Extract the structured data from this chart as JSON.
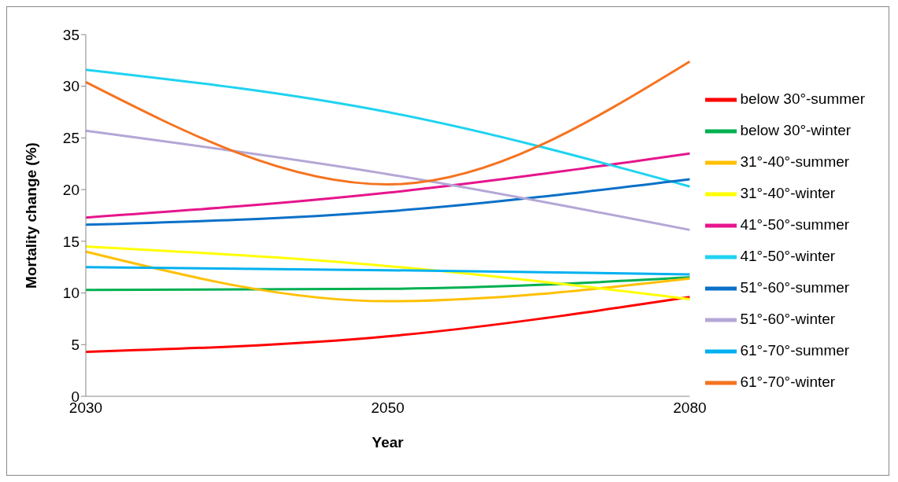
{
  "chart_data": {
    "type": "line",
    "xlabel": "Year",
    "ylabel": "Mortality change (%)",
    "categories": [
      "2030",
      "2050",
      "2080"
    ],
    "ylim": [
      0,
      35
    ],
    "yticks": [
      0,
      5,
      10,
      15,
      20,
      25,
      30,
      35
    ],
    "grid": false,
    "legend": "right",
    "marker": "none",
    "line_style": "solid",
    "series": [
      {
        "name": "below 30°-summer",
        "color": "#ff0000",
        "values": [
          4.3,
          5.8,
          9.6
        ]
      },
      {
        "name": "below 30°-winter",
        "color": "#00b050",
        "values": [
          10.3,
          10.4,
          11.5
        ]
      },
      {
        "name": "31°-40°-summer",
        "color": "#ffc000",
        "values": [
          14.0,
          9.2,
          11.4
        ]
      },
      {
        "name": "31°-40°-winter",
        "color": "#ffff00",
        "values": [
          14.5,
          12.6,
          9.4
        ]
      },
      {
        "name": "41°-50°-summer",
        "color": "#e6158c",
        "values": [
          17.3,
          19.7,
          23.5
        ]
      },
      {
        "name": "41°-50°-winter",
        "color": "#1fd3f0",
        "values": [
          31.6,
          27.5,
          20.3
        ]
      },
      {
        "name": "51°-60°-summer",
        "color": "#0a70c8",
        "values": [
          16.6,
          17.9,
          21.0
        ]
      },
      {
        "name": "51°-60°-winter",
        "color": "#b4a7d6",
        "values": [
          25.7,
          21.5,
          16.1
        ]
      },
      {
        "name": "61°-70°-summer",
        "color": "#00b0f0",
        "values": [
          12.5,
          12.2,
          11.8
        ]
      },
      {
        "name": "61°-70°-winter",
        "color": "#f57320",
        "values": [
          30.4,
          20.5,
          32.4
        ]
      }
    ]
  }
}
